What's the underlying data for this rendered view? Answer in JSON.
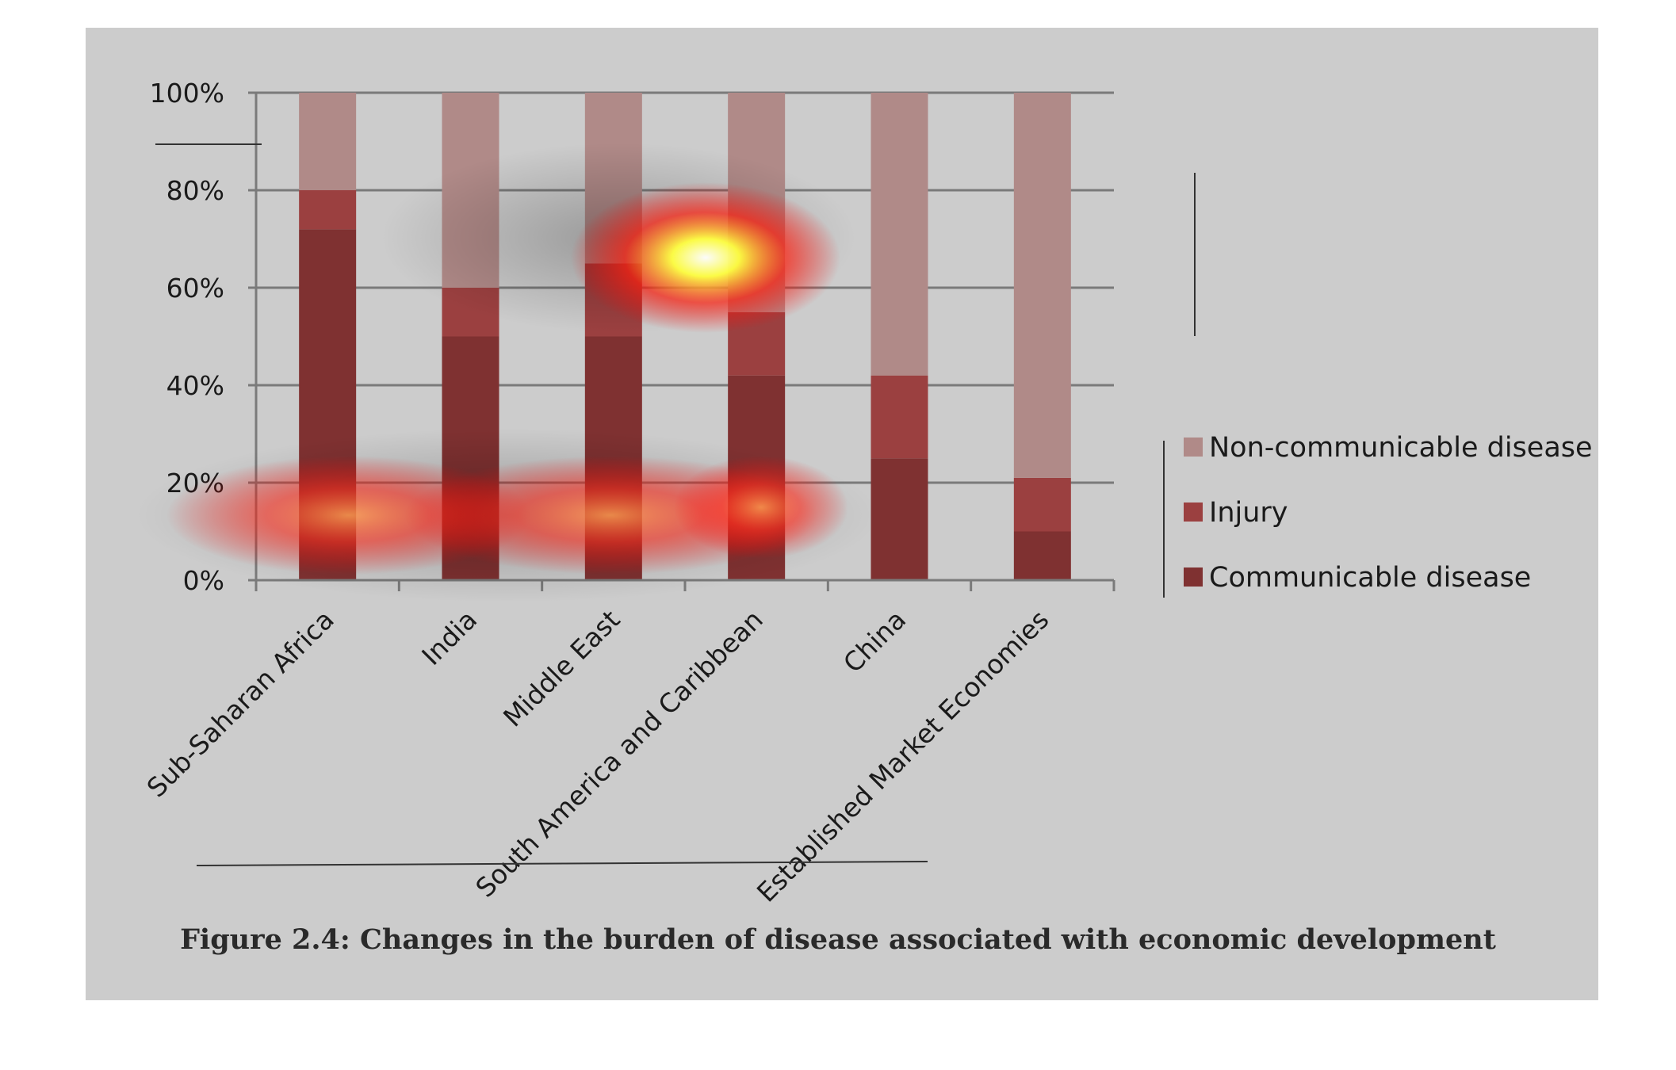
{
  "chart_data": {
    "type": "bar",
    "stacked": true,
    "categories": [
      "Sub-Saharan Africa",
      "India",
      "Middle East",
      "South America and Caribbean",
      "China",
      "Established Market Economies"
    ],
    "series": [
      {
        "name": "Communicable disease",
        "values": [
          72,
          50,
          50,
          42,
          25,
          10
        ],
        "color": "#7f3131"
      },
      {
        "name": "Injury",
        "values": [
          8,
          10,
          15,
          13,
          17,
          11
        ],
        "color": "#9b4040"
      },
      {
        "name": "Non-communicable disease",
        "values": [
          20,
          40,
          35,
          45,
          58,
          79
        ],
        "color": "#b08a88"
      }
    ],
    "y_ticks": [
      "0%",
      "20%",
      "40%",
      "60%",
      "80%",
      "100%"
    ],
    "ylim": [
      0,
      100
    ],
    "grid": true,
    "legend_placement": "right",
    "legend_order": [
      "Non-communicable disease",
      "Injury",
      "Communicable disease"
    ]
  },
  "caption": "Figure 2.4: Changes in the burden of disease associated with economic development",
  "colors": {
    "panel": "#cccccc",
    "grid": "#7a7a7a"
  }
}
